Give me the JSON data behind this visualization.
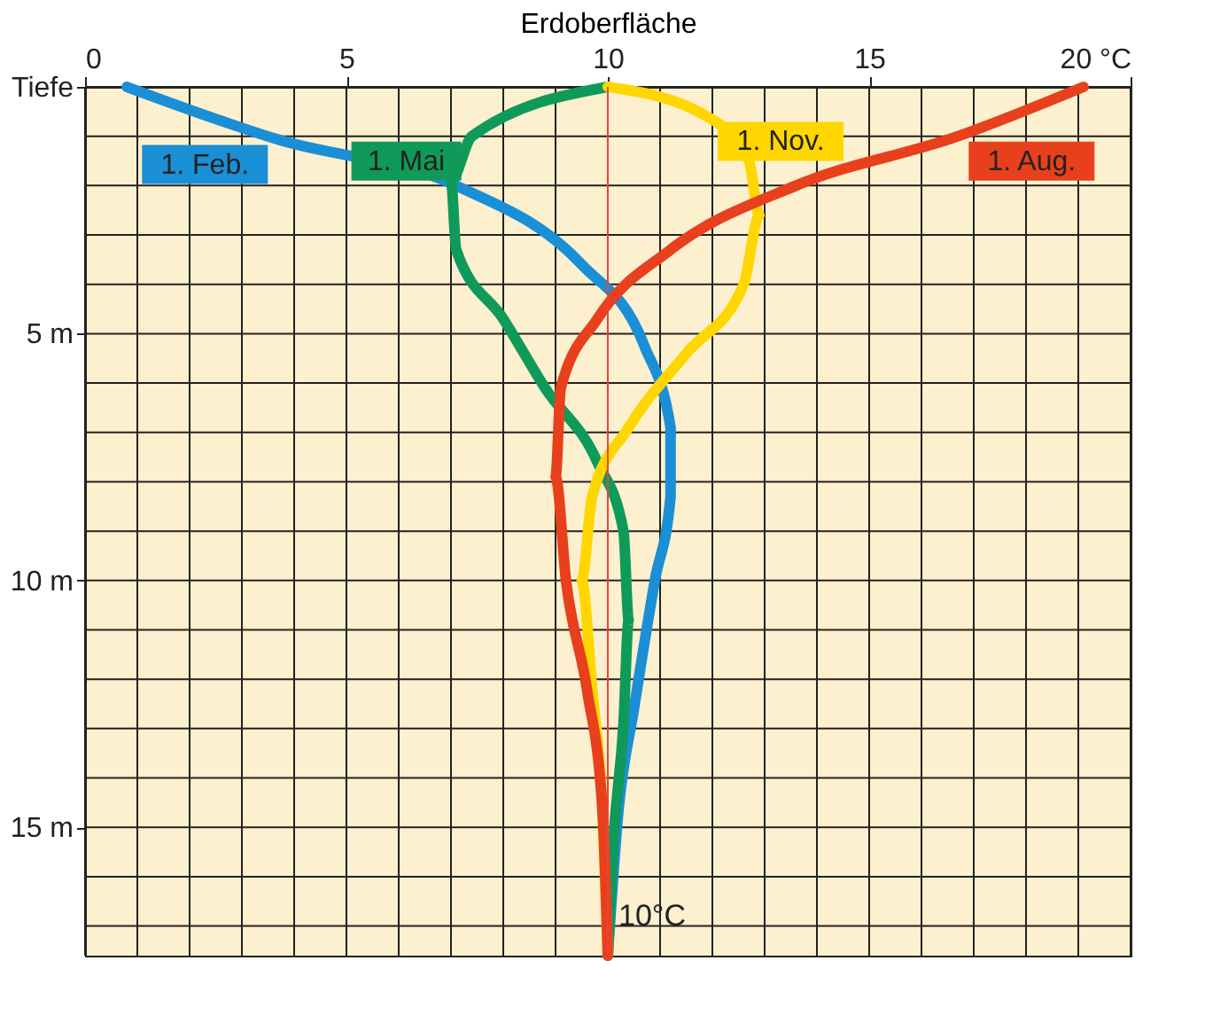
{
  "chart_data": {
    "type": "line",
    "xlabel": "Erdoberfläche",
    "xlim": [
      0,
      20
    ],
    "ylim": [
      17.6,
      0
    ],
    "xticks": [
      0,
      {
        "value": 1,
        "label": null
      },
      {
        "value": 2,
        "label": null
      },
      {
        "value": 3,
        "label": null
      },
      {
        "value": 4,
        "label": null
      },
      5,
      {
        "value": 6,
        "label": null
      },
      {
        "value": 7,
        "label": null
      },
      {
        "value": 8,
        "label": null
      },
      {
        "value": 9,
        "label": null
      },
      10,
      {
        "value": 11,
        "label": null
      },
      {
        "value": 12,
        "label": null
      },
      {
        "value": 13,
        "label": null
      },
      {
        "value": 14,
        "label": null
      },
      15,
      {
        "value": 16,
        "label": null
      },
      {
        "value": 17,
        "label": null
      },
      {
        "value": 18,
        "label": null
      },
      {
        "value": 19,
        "label": null
      },
      {
        "value": 20,
        "label": "20 °C"
      }
    ],
    "yticks": [
      {
        "value": 0,
        "label": "Tiefe"
      },
      {
        "value": 1,
        "label": null
      },
      {
        "value": 2,
        "label": null
      },
      {
        "value": 3,
        "label": null
      },
      {
        "value": 4,
        "label": null
      },
      {
        "value": 5,
        "label": "5 m"
      },
      {
        "value": 6,
        "label": null
      },
      {
        "value": 7,
        "label": null
      },
      {
        "value": 8,
        "label": null
      },
      {
        "value": 9,
        "label": null
      },
      {
        "value": 10,
        "label": "10 m"
      },
      {
        "value": 11,
        "label": null
      },
      {
        "value": 12,
        "label": null
      },
      {
        "value": 13,
        "label": null
      },
      {
        "value": 14,
        "label": null
      },
      {
        "value": 15,
        "label": "15 m"
      },
      {
        "value": 16,
        "label": null
      },
      {
        "value": 17,
        "label": null
      }
    ],
    "grid": true,
    "legend": false,
    "marker": "none",
    "line_style": "solid",
    "ref_lines": [
      {
        "axis": "x",
        "value": 10,
        "label": "10°C",
        "color": "#e8453c"
      }
    ],
    "series": [
      {
        "name": "1. Feb.",
        "color": "#1a8fd6",
        "x": [
          0.8,
          3.7,
          7.1,
          9.5,
          10.7,
          11.2,
          11.2,
          10.9,
          10.5,
          10.2,
          10.0
        ],
        "values": [
          0,
          1.07,
          2,
          3.6,
          5.25,
          6.9,
          8.3,
          10,
          12.6,
          14.7,
          17.6
        ]
      },
      {
        "name": "1. Mai",
        "color": "#0f9a5a",
        "x": [
          10,
          7.4,
          7.0,
          7.1,
          8.0,
          8.8,
          9.8,
          10.3,
          10.4,
          10.3,
          10.1,
          10.0
        ],
        "values": [
          0,
          1,
          1.9,
          3.3,
          4.7,
          6.1,
          7.6,
          9,
          10.8,
          12.9,
          15.4,
          17.6
        ]
      },
      {
        "name": "1. Nov.",
        "color": "#ffd600",
        "x": [
          10,
          11.9,
          12.7,
          12.9,
          12.6,
          11.5,
          10.4,
          9.7,
          9.5,
          9.7,
          9.9,
          10.0
        ],
        "values": [
          0,
          0.6,
          1.5,
          2.6,
          4,
          5.4,
          6.9,
          8.3,
          10,
          12.2,
          14.7,
          17.6
        ]
      },
      {
        "name": "1. Aug.",
        "color": "#e8401c",
        "x": [
          19.1,
          16.7,
          13.6,
          11.2,
          9.8,
          9.1,
          9.0,
          9.2,
          9.6,
          9.9,
          10.0
        ],
        "values": [
          0,
          1,
          2,
          3.3,
          4.7,
          6.1,
          7.9,
          10,
          12.2,
          14.7,
          17.6
        ]
      }
    ]
  }
}
